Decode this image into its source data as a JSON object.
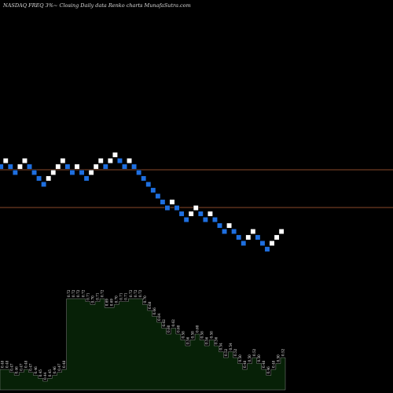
{
  "header": {
    "title": "NASDAQ FREQ 3%~  Closing Daily data  Renko  charts MunafaSutra.com"
  },
  "colors": {
    "background": "#000000",
    "up_brick": "#ffffff",
    "down_brick": "#1e6fe0",
    "reference_line": "#8a4a2a",
    "volume_fill": "#072107",
    "volume_stroke": "#bfbfbf",
    "label": "#e8e8e8"
  },
  "chart_data": {
    "type": "renko",
    "title": "NASDAQ FREQ 3%~  Closing Daily data  Renko  charts MunafaSutra.com",
    "box_size_label": "3%~",
    "brick_levels": [
      30,
      31,
      30,
      29,
      30,
      31,
      30,
      29,
      28,
      27,
      28,
      29,
      30,
      31,
      30,
      29,
      30,
      29,
      28,
      29,
      30,
      31,
      30,
      31,
      32,
      31,
      30,
      31,
      30,
      29,
      28,
      27,
      26,
      25,
      24,
      23,
      24,
      23,
      22,
      21,
      22,
      23,
      22,
      21,
      22,
      21,
      20,
      19,
      20,
      19,
      18,
      17,
      18,
      19,
      18,
      17,
      16,
      17,
      18,
      19
    ],
    "brick_direction": [
      "down",
      "up",
      "down",
      "down",
      "up",
      "up",
      "down",
      "down",
      "down",
      "down",
      "up",
      "up",
      "up",
      "up",
      "down",
      "down",
      "up",
      "down",
      "down",
      "up",
      "up",
      "up",
      "down",
      "up",
      "up",
      "down",
      "down",
      "up",
      "down",
      "down",
      "down",
      "down",
      "down",
      "down",
      "down",
      "down",
      "up",
      "down",
      "down",
      "down",
      "up",
      "up",
      "down",
      "down",
      "up",
      "down",
      "down",
      "down",
      "up",
      "down",
      "down",
      "down",
      "up",
      "up",
      "down",
      "down",
      "down",
      "up",
      "up",
      "up"
    ],
    "reference_lines": [
      "upper",
      "lower"
    ],
    "volume_labels": [
      "0.48",
      "0.48",
      "0.47",
      "0.46",
      "0.47",
      "0.48",
      "0.47",
      "0.46",
      "0.45",
      "0.44",
      "0.45",
      "0.46",
      "0.47",
      "0.48",
      "0.72",
      "0.72",
      "0.72",
      "0.72",
      "0.71",
      "0.70",
      "0.71",
      "0.72",
      "0.69",
      "0.69",
      "0.70",
      "0.71",
      "0.71",
      "0.72",
      "0.72",
      "0.72",
      "0.70",
      "0.68",
      "0.66",
      "0.64",
      "0.62",
      "0.60",
      "0.62",
      "0.60",
      "0.58",
      "0.56",
      "0.58",
      "0.60",
      "0.58",
      "0.56",
      "0.58",
      "0.56",
      "0.54",
      "0.52",
      "0.54",
      "0.52",
      "0.50",
      "0.48",
      "0.50",
      "0.52",
      "0.50",
      "0.48",
      "0.46",
      "0.48",
      "0.50",
      "0.52"
    ],
    "volume_levels": [
      0.48,
      0.48,
      0.47,
      0.46,
      0.47,
      0.48,
      0.47,
      0.46,
      0.45,
      0.44,
      0.45,
      0.46,
      0.47,
      0.48,
      0.72,
      0.72,
      0.72,
      0.72,
      0.71,
      0.7,
      0.71,
      0.72,
      0.69,
      0.69,
      0.7,
      0.71,
      0.71,
      0.72,
      0.72,
      0.72,
      0.7,
      0.68,
      0.66,
      0.64,
      0.62,
      0.6,
      0.62,
      0.6,
      0.58,
      0.56,
      0.58,
      0.6,
      0.58,
      0.56,
      0.58,
      0.56,
      0.54,
      0.52,
      0.54,
      0.52,
      0.5,
      0.48,
      0.5,
      0.52,
      0.5,
      0.48,
      0.46,
      0.48,
      0.5,
      0.52
    ]
  }
}
